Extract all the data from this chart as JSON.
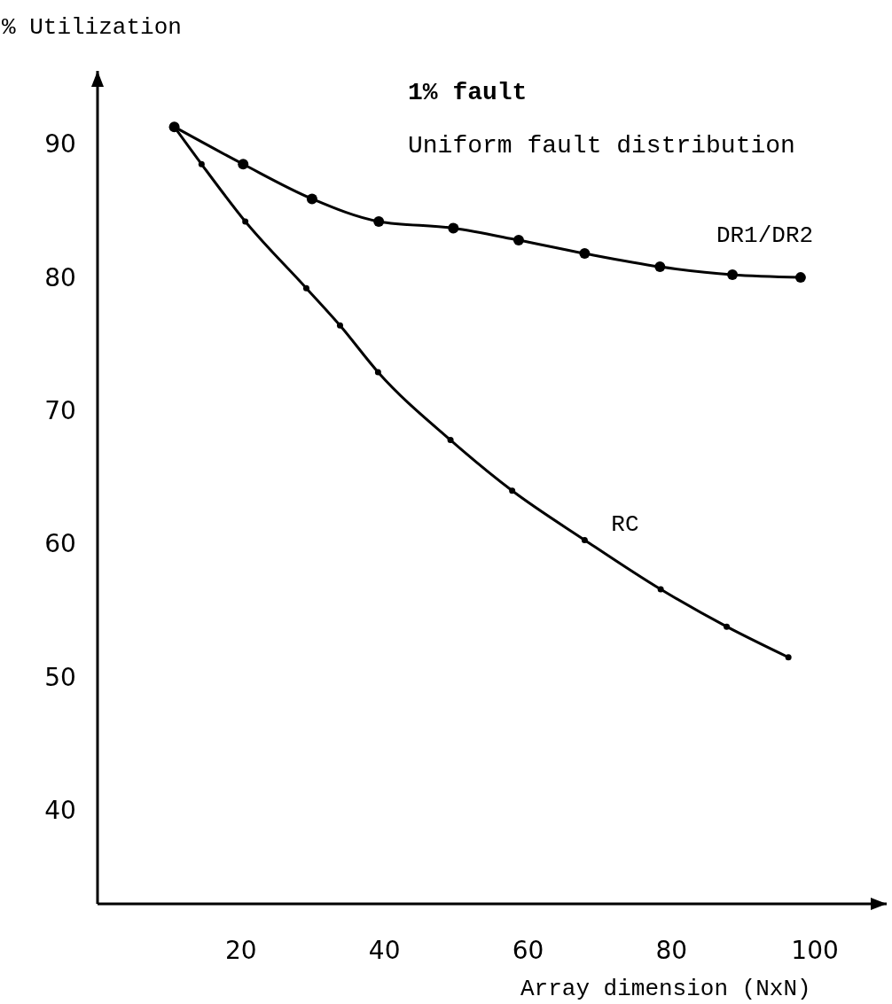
{
  "chart_data": {
    "type": "line",
    "xlabel": "Array dimension (NxN)",
    "ylabel": "% Utilization",
    "annotations": [
      "1% fault",
      "Uniform fault distribution"
    ],
    "xlim": [
      0,
      110
    ],
    "ylim": [
      33,
      95.5
    ],
    "xticks": [
      20,
      40,
      60,
      80,
      100
    ],
    "yticks": [
      40,
      50,
      60,
      70,
      80,
      90
    ],
    "grid": false,
    "legend": false,
    "marker": "circle",
    "line_style": "solid",
    "series": [
      {
        "name": "DR1/DR2",
        "color": "#000000",
        "x": [
          10.7,
          20.3,
          29.9,
          39.2,
          49.6,
          58.7,
          67.9,
          78.4,
          88.5,
          98
        ],
        "values": [
          91.3,
          88.5,
          85.9,
          84.2,
          83.7,
          82.8,
          81.8,
          80.8,
          80.2,
          80
        ]
      },
      {
        "name": "RC",
        "color": "#000000",
        "x": [
          10.7,
          14.5,
          20.6,
          29.1,
          33.8,
          39.1,
          49.2,
          57.8,
          67.9,
          78.5,
          87.7,
          96.3
        ],
        "values": [
          91.3,
          88.5,
          84.2,
          79.2,
          76.4,
          72.9,
          67.8,
          64,
          60.3,
          56.6,
          53.8,
          51.5
        ]
      }
    ]
  }
}
